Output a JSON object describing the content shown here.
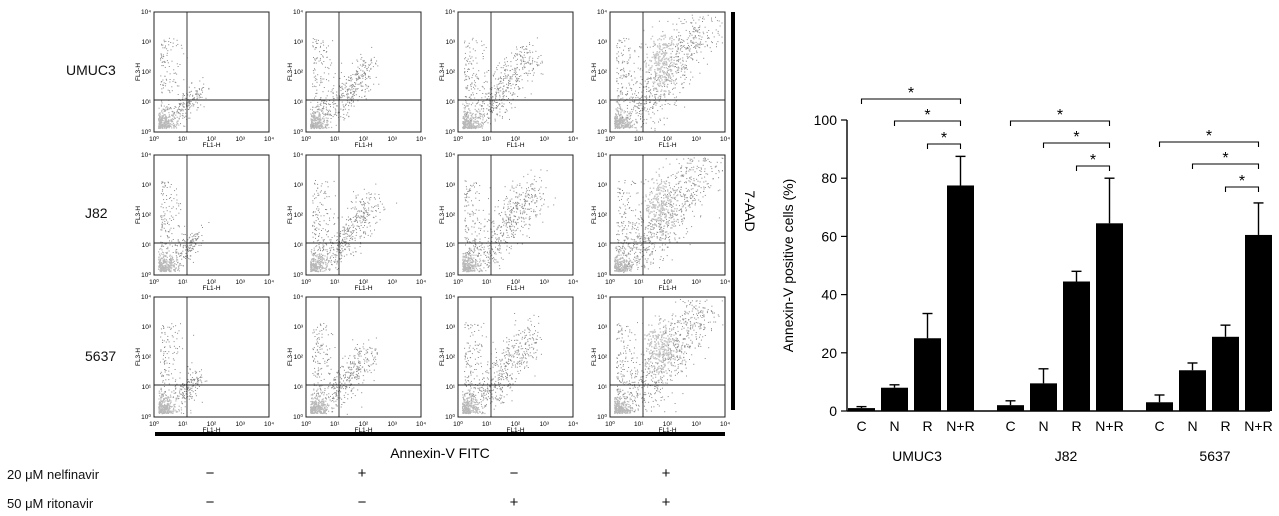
{
  "flow_panel": {
    "cell_lines": [
      "UMUC3",
      "J82",
      "5637"
    ],
    "x_axis_title": "Annexin-V FITC",
    "y_axis_title": "7-AAD",
    "plot_xlabel": "FL1-H",
    "plot_ylabel": "FL3-H",
    "tick_labels": [
      "10⁰",
      "10¹",
      "10²",
      "10³",
      "10⁴"
    ],
    "treatments": [
      {
        "label": "20 μM nelfinavir",
        "signs": [
          "−",
          "+",
          "−",
          "+"
        ]
      },
      {
        "label": "50 μM ritonavir",
        "signs": [
          "−",
          "−",
          "+",
          "+"
        ]
      }
    ]
  },
  "chart_data": {
    "type": "bar",
    "ylabel": "Annexin-V positive cells (%)",
    "ylim": [
      0,
      100
    ],
    "yticks": [
      0,
      20,
      40,
      60,
      80,
      100
    ],
    "groups": [
      {
        "name": "UMUC3",
        "categories": [
          "C",
          "N",
          "R",
          "N+R"
        ],
        "values": [
          1,
          8,
          25,
          77.5
        ],
        "errors": [
          0.5,
          1,
          8.5,
          10
        ]
      },
      {
        "name": "J82",
        "categories": [
          "C",
          "N",
          "R",
          "N+R"
        ],
        "values": [
          2,
          9.5,
          44.5,
          64.5
        ],
        "errors": [
          1.5,
          5,
          3.5,
          15.5
        ]
      },
      {
        "name": "5637",
        "categories": [
          "C",
          "N",
          "R",
          "N+R"
        ],
        "values": [
          3,
          14,
          25.5,
          60.5
        ],
        "errors": [
          2.5,
          2.5,
          4,
          11
        ]
      }
    ],
    "significance": [
      {
        "group": "UMUC3",
        "from": "C",
        "to": "N+R",
        "label": "*"
      },
      {
        "group": "UMUC3",
        "from": "N",
        "to": "N+R",
        "label": "*"
      },
      {
        "group": "UMUC3",
        "from": "R",
        "to": "N+R",
        "label": "*"
      },
      {
        "group": "J82",
        "from": "C",
        "to": "N+R",
        "label": "*"
      },
      {
        "group": "J82",
        "from": "N",
        "to": "N+R",
        "label": "*"
      },
      {
        "group": "J82",
        "from": "R",
        "to": "N+R",
        "label": "*"
      },
      {
        "group": "5637",
        "from": "C",
        "to": "N+R",
        "label": "*"
      },
      {
        "group": "5637",
        "from": "N",
        "to": "N+R",
        "label": "*"
      },
      {
        "group": "5637",
        "from": "R",
        "to": "N+R",
        "label": "*"
      }
    ]
  }
}
